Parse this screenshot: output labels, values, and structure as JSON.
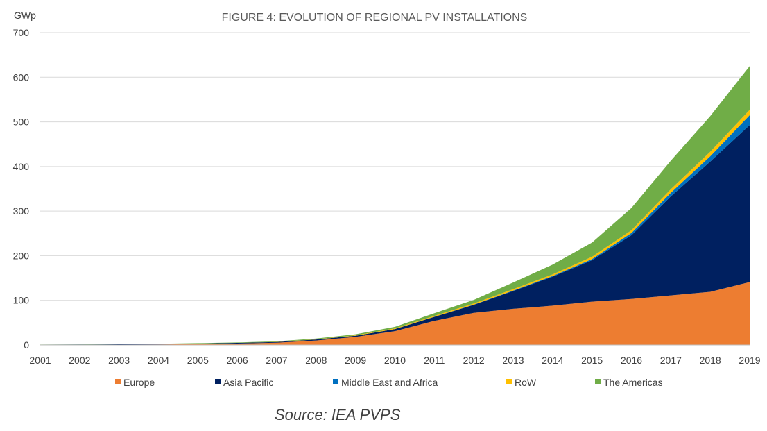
{
  "chart_data": {
    "type": "area",
    "stacked": true,
    "title": "FIGURE 4: EVOLUTION OF REGIONAL PV INSTALLATIONS",
    "ylabel": "GWp",
    "xlabel": "",
    "ylim": [
      0,
      700
    ],
    "yticks": [
      0,
      100,
      200,
      300,
      400,
      500,
      600,
      700
    ],
    "grid": true,
    "legend": "bottom",
    "x": [
      "2001",
      "2002",
      "2003",
      "2004",
      "2005",
      "2006",
      "2007",
      "2008",
      "2009",
      "2010",
      "2011",
      "2012",
      "2013",
      "2014",
      "2015",
      "2016",
      "2017",
      "2018",
      "2019"
    ],
    "series": [
      {
        "name": "Europe",
        "color": "#ed7d31",
        "values": [
          0.3,
          0.5,
          0.8,
          1.2,
          2.0,
          3.2,
          5.0,
          10.0,
          18.0,
          31.0,
          54.0,
          72.0,
          81.0,
          88.0,
          97.0,
          103.0,
          111.0,
          119.0,
          141.0
        ]
      },
      {
        "name": "Asia Pacific",
        "color": "#002060",
        "values": [
          0.5,
          0.6,
          0.8,
          1.0,
          1.2,
          1.4,
          1.7,
          2.2,
          2.7,
          4.5,
          9.0,
          18.0,
          40.0,
          65.0,
          93.0,
          143.0,
          222.0,
          292.0,
          352.0
        ]
      },
      {
        "name": "Middle East and Africa",
        "color": "#0070c0",
        "values": [
          0,
          0,
          0,
          0,
          0,
          0,
          0,
          0,
          0,
          0.1,
          0.2,
          0.5,
          1.0,
          1.5,
          2.5,
          5.0,
          8.0,
          12.0,
          22.0
        ]
      },
      {
        "name": "RoW",
        "color": "#ffc000",
        "values": [
          0,
          0,
          0,
          0,
          0,
          0.1,
          0.2,
          0.4,
          0.8,
          1.5,
          2.0,
          2.5,
          3.0,
          3.5,
          5.0,
          6.0,
          8.0,
          10.0,
          12.0
        ]
      },
      {
        "name": "The Americas",
        "color": "#70ad47",
        "values": [
          0.2,
          0.3,
          0.4,
          0.5,
          0.8,
          1.0,
          1.3,
          1.8,
          2.5,
          3.5,
          6.0,
          8.0,
          15.0,
          22.0,
          32.0,
          50.0,
          64.0,
          80.0,
          98.0
        ]
      }
    ]
  },
  "source": "Source: IEA PVPS"
}
